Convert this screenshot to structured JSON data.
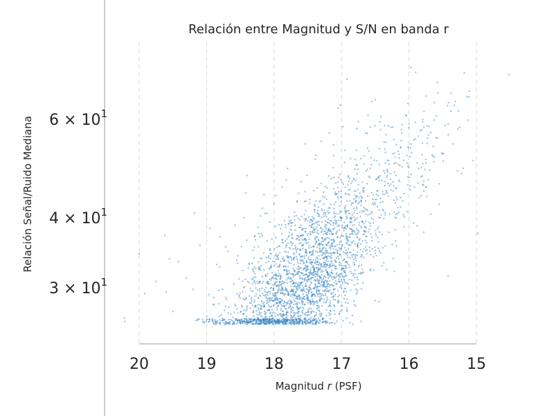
{
  "chart_data": {
    "type": "scatter",
    "title": "Relación entre Magnitud y S/N en banda r",
    "xlabel_prefix": "Magnitud ",
    "xlabel_var": "r",
    "xlabel_suffix": " (PSF)",
    "ylabel": "Relación Señal/Ruido Mediana",
    "x_inverted": true,
    "y_scale": "log",
    "xlim": [
      20.2,
      14.5
    ],
    "ylim": [
      25.3,
      76
    ],
    "grid": {
      "x": true,
      "y": false,
      "style": "dashed"
    },
    "color": "#3a86c2",
    "x_ticks": [
      {
        "value": 20,
        "label": "20"
      },
      {
        "value": 19,
        "label": "19"
      },
      {
        "value": 18,
        "label": "18"
      },
      {
        "value": 17,
        "label": "17"
      },
      {
        "value": 16,
        "label": "16"
      },
      {
        "value": 15,
        "label": "15"
      }
    ],
    "y_ticks": [
      {
        "value": 60,
        "mantissa": "6",
        "base": "10",
        "exp": "1"
      },
      {
        "value": 40,
        "mantissa": "4",
        "base": "10",
        "exp": "1"
      },
      {
        "value": 30,
        "mantissa": "3",
        "base": "10",
        "exp": "1"
      }
    ],
    "points": [
      [
        20.22,
        26.5
      ],
      [
        20.21,
        26.1
      ],
      [
        20.0,
        34.5
      ],
      [
        19.92,
        29.3
      ],
      [
        19.75,
        30.8
      ],
      [
        19.62,
        37.2
      ],
      [
        19.6,
        29.5
      ],
      [
        19.55,
        33.8
      ],
      [
        19.5,
        27.2
      ],
      [
        19.42,
        33.4
      ],
      [
        19.3,
        31.2
      ],
      [
        19.2,
        29.8
      ],
      [
        19.18,
        40.8
      ],
      [
        19.1,
        35.7
      ],
      [
        19.0,
        26.7
      ],
      [
        18.95,
        38.3
      ],
      [
        18.85,
        33.0
      ],
      [
        18.8,
        37.0
      ],
      [
        18.72,
        35.5
      ],
      [
        18.58,
        38.8
      ],
      [
        18.45,
        40.0
      ],
      [
        18.42,
        44.3
      ],
      [
        18.4,
        47.6
      ],
      [
        18.2,
        40.3
      ],
      [
        18.15,
        44.0
      ],
      [
        18.0,
        42.4
      ],
      [
        17.88,
        45.4
      ],
      [
        17.82,
        46.7
      ],
      [
        17.8,
        49.0
      ],
      [
        17.6,
        46.4
      ],
      [
        17.38,
        51.7
      ],
      [
        17.3,
        54.8
      ],
      [
        17.18,
        56.7
      ],
      [
        17.05,
        62.8
      ],
      [
        17.02,
        63.6
      ],
      [
        16.98,
        58.2
      ],
      [
        16.95,
        52.8
      ],
      [
        16.92,
        70.8
      ],
      [
        16.75,
        59.4
      ],
      [
        16.62,
        56.6
      ],
      [
        16.55,
        64.5
      ],
      [
        16.5,
        65.0
      ],
      [
        16.42,
        57.5
      ],
      [
        16.3,
        50.6
      ],
      [
        16.12,
        53.5
      ],
      [
        16.05,
        61.0
      ],
      [
        15.98,
        45.6
      ],
      [
        15.97,
        74.2
      ],
      [
        15.9,
        72.8
      ],
      [
        15.8,
        54.4
      ],
      [
        15.75,
        66.0
      ],
      [
        15.7,
        58.3
      ],
      [
        15.62,
        51.4
      ],
      [
        15.58,
        69.8
      ],
      [
        15.5,
        52.0
      ],
      [
        15.42,
        58.8
      ],
      [
        15.38,
        62.0
      ],
      [
        15.35,
        54.2
      ],
      [
        15.28,
        48.5
      ],
      [
        15.22,
        48.0
      ],
      [
        15.12,
        59.8
      ],
      [
        15.05,
        50.6
      ],
      [
        15.42,
        31.5
      ],
      [
        14.98,
        37.5
      ],
      [
        15.25,
        58.0
      ],
      [
        15.78,
        46.5
      ],
      [
        15.68,
        40.6
      ],
      [
        15.55,
        46.0
      ],
      [
        15.88,
        38.7
      ],
      [
        16.2,
        42.5
      ],
      [
        15.18,
        72.6
      ],
      [
        14.52,
        72.1
      ],
      [
        16.68,
        45.2
      ],
      [
        16.9,
        44.1
      ]
    ],
    "generated_points": 2800
  }
}
